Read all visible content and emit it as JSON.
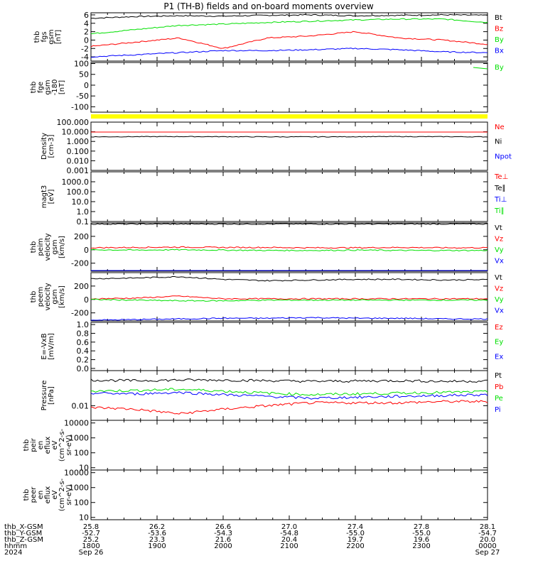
{
  "title": "P1 (TH-B) fields and on-board moments overview",
  "colors": {
    "black": "#000000",
    "red": "#ff0000",
    "green": "#00e000",
    "blue": "#0000ff",
    "yellow": "#ffff00"
  },
  "chart_data": {
    "type": "line",
    "x_tick_labels": [
      "1800",
      "1900",
      "2000",
      "2100",
      "2200",
      "2300",
      "0000"
    ],
    "panels": [
      {
        "ylabel": [
          "thb",
          "fgs",
          "gsm",
          "[nT]"
        ],
        "yticks": [
          "6",
          "4",
          "2",
          "0",
          "-2",
          "-4"
        ],
        "ylim": [
          -5,
          6.5
        ],
        "series": [
          {
            "name": "Bt",
            "color": "black",
            "values": [
              5.2,
              5.6,
              5.8,
              5.7,
              5.9,
              6.0,
              5.8,
              5.9,
              6.0,
              5.9
            ]
          },
          {
            "name": "Bz",
            "color": "red",
            "values": [
              -1.5,
              -0.5,
              0.5,
              -2.0,
              0.5,
              1.0,
              2.0,
              0.5,
              0,
              -1.0
            ]
          },
          {
            "name": "By",
            "color": "green",
            "values": [
              1.5,
              2.5,
              3.5,
              3.8,
              4.2,
              4.5,
              4.8,
              5.0,
              5.0,
              4.2
            ]
          },
          {
            "name": "Bx",
            "color": "blue",
            "values": [
              -4.0,
              -3.5,
              -3.0,
              -2.5,
              -2.5,
              -2.3,
              -2.0,
              -2.3,
              -2.8,
              -3.0
            ]
          }
        ]
      },
      {
        "ylabel": [
          "thb",
          "fge",
          "gsm",
          "-180",
          "[nT]"
        ],
        "yticks": [
          "100",
          "50",
          "0",
          "-50",
          "-100"
        ],
        "ylim": [
          -125,
          105
        ],
        "series": [
          {
            "name": "By",
            "color": "green",
            "values": []
          }
        ]
      },
      {
        "ylabel": [
          "Density",
          "[cm-3]"
        ],
        "yticks": [
          "100.000",
          "10.000",
          "1.000",
          "0.100",
          "0.010",
          "0.001"
        ],
        "log": true,
        "ylim": [
          0.001,
          100
        ],
        "series": [
          {
            "name": "Ne",
            "color": "red",
            "values": []
          },
          {
            "name": "Ni",
            "color": "black",
            "values": [
              3.0,
              3.1,
              3.2,
              3.1,
              3.0,
              3.0,
              3.1,
              3.2,
              3.1,
              3.0
            ]
          },
          {
            "name": "Npot",
            "color": "blue",
            "values": []
          }
        ]
      },
      {
        "ylabel": [
          "magt3",
          "[eV]"
        ],
        "yticks": [
          "1000.0",
          "100.0",
          "10.0",
          "1.0",
          "0.1"
        ],
        "log": true,
        "ylim": [
          0.1,
          10000
        ],
        "series": [
          {
            "name": "Te⊥",
            "color": "red",
            "values": []
          },
          {
            "name": "Te∥",
            "color": "black",
            "values": []
          },
          {
            "name": "Ti⊥",
            "color": "blue",
            "values": []
          },
          {
            "name": "Ti∥",
            "color": "green",
            "values": []
          }
        ]
      },
      {
        "ylabel": [
          "thb",
          "peim",
          "velocity",
          "gsm",
          "[km/s]"
        ],
        "yticks": [
          "200",
          "0",
          "-200"
        ],
        "ylim": [
          -320,
          400
        ],
        "series": [
          {
            "name": "Vt",
            "color": "black",
            "values": [
              385,
              385,
              385,
              385,
              385,
              385,
              385,
              385,
              385,
              385
            ]
          },
          {
            "name": "Vz",
            "color": "red",
            "values": [
              30,
              35,
              40,
              35,
              35,
              30,
              30,
              35,
              30,
              30
            ]
          },
          {
            "name": "Vy",
            "color": "green",
            "values": [
              0,
              -5,
              0,
              -5,
              -10,
              -10,
              -5,
              -10,
              -10,
              -10
            ]
          },
          {
            "name": "Vx",
            "color": "blue",
            "values": [
              -320,
              -320,
              -320,
              -320,
              -320,
              -320,
              -320,
              -320,
              -320,
              -320
            ]
          }
        ]
      },
      {
        "ylabel": [
          "thb",
          "peem",
          "velocity",
          "gsm",
          "[km/s]"
        ],
        "yticks": [
          "200",
          "0",
          "-200"
        ],
        "ylim": [
          -320,
          400
        ],
        "series": [
          {
            "name": "Vt",
            "color": "black",
            "values": [
              310,
              320,
              340,
              300,
              280,
              290,
              300,
              300,
              290,
              295
            ]
          },
          {
            "name": "Vz",
            "color": "red",
            "values": [
              10,
              20,
              50,
              10,
              10,
              10,
              10,
              10,
              10,
              10
            ]
          },
          {
            "name": "Vy",
            "color": "green",
            "values": [
              0,
              -10,
              -20,
              -20,
              -10,
              -10,
              -10,
              -10,
              -10,
              -10
            ]
          },
          {
            "name": "Vx",
            "color": "blue",
            "values": [
              -310,
              -300,
              -290,
              -280,
              -280,
              -270,
              -280,
              -280,
              -290,
              -290
            ]
          }
        ]
      },
      {
        "ylabel": [
          "E=-VxB",
          "[mV/m]"
        ],
        "yticks": [
          "1.0",
          "0.8",
          "0.6",
          "0.4",
          "0.2",
          "0.0"
        ],
        "ylim": [
          -0.05,
          1.05
        ],
        "series": [
          {
            "name": "Ez",
            "color": "red",
            "values": []
          },
          {
            "name": "Ey",
            "color": "green",
            "values": []
          },
          {
            "name": "Ex",
            "color": "blue",
            "values": []
          }
        ]
      },
      {
        "ylabel": [
          "Pressure",
          "[nPa]"
        ],
        "yticks": [
          "0.01"
        ],
        "log": true,
        "ylim": [
          0.004,
          0.09
        ],
        "series": [
          {
            "name": "Pt",
            "color": "black",
            "values": [
              0.05,
              0.048,
              0.05,
              0.05,
              0.048,
              0.046,
              0.047,
              0.048,
              0.046,
              0.047
            ]
          },
          {
            "name": "Pb",
            "color": "red",
            "values": [
              0.009,
              0.008,
              0.006,
              0.008,
              0.01,
              0.012,
              0.012,
              0.012,
              0.013,
              0.013
            ]
          },
          {
            "name": "Pe",
            "color": "green",
            "values": [
              0.025,
              0.026,
              0.028,
              0.025,
              0.022,
              0.02,
              0.021,
              0.022,
              0.023,
              0.024
            ]
          },
          {
            "name": "Pi",
            "color": "blue",
            "values": [
              0.022,
              0.021,
              0.023,
              0.02,
              0.018,
              0.016,
              0.017,
              0.018,
              0.019,
              0.02
            ]
          }
        ]
      },
      {
        "ylabel": [
          "thb",
          "peir",
          "en",
          "eflux",
          "eV",
          "(cm^2-s-",
          "sr-eV)"
        ],
        "yticks": [
          "10000",
          "1000",
          "100",
          "10"
        ],
        "log": true,
        "ylim": [
          7,
          15000
        ],
        "series": []
      },
      {
        "ylabel": [
          "thb",
          "peer",
          "en",
          "eflux",
          "eV",
          "(cm^2-s-",
          "sr-eV)"
        ],
        "yticks": [
          "10000",
          "1000",
          "100",
          "10"
        ],
        "log": true,
        "ylim": [
          7,
          15000
        ],
        "series": []
      }
    ],
    "footer": {
      "row_labels": [
        "thb_X-GSM",
        "thb_Y-GSM",
        "thb_Z-GSM",
        "hhmm",
        "2024"
      ],
      "columns": [
        {
          "vals": [
            "25.8",
            "-52.7",
            "25.2",
            "1800"
          ],
          "date": "Sep 26"
        },
        {
          "vals": [
            "26.2",
            "-53.6",
            "23.3",
            "1900"
          ],
          "date": ""
        },
        {
          "vals": [
            "26.6",
            "-54.3",
            "21.6",
            "2000"
          ],
          "date": ""
        },
        {
          "vals": [
            "27.0",
            "-54.8",
            "20.4",
            "2100"
          ],
          "date": ""
        },
        {
          "vals": [
            "27.4",
            "-55.0",
            "19.7",
            "2200"
          ],
          "date": ""
        },
        {
          "vals": [
            "27.8",
            "-55.0",
            "19.6",
            "2300"
          ],
          "date": ""
        },
        {
          "vals": [
            "28.1",
            "-54.7",
            "20.0",
            "0000"
          ],
          "date": "Sep 27"
        }
      ]
    }
  }
}
